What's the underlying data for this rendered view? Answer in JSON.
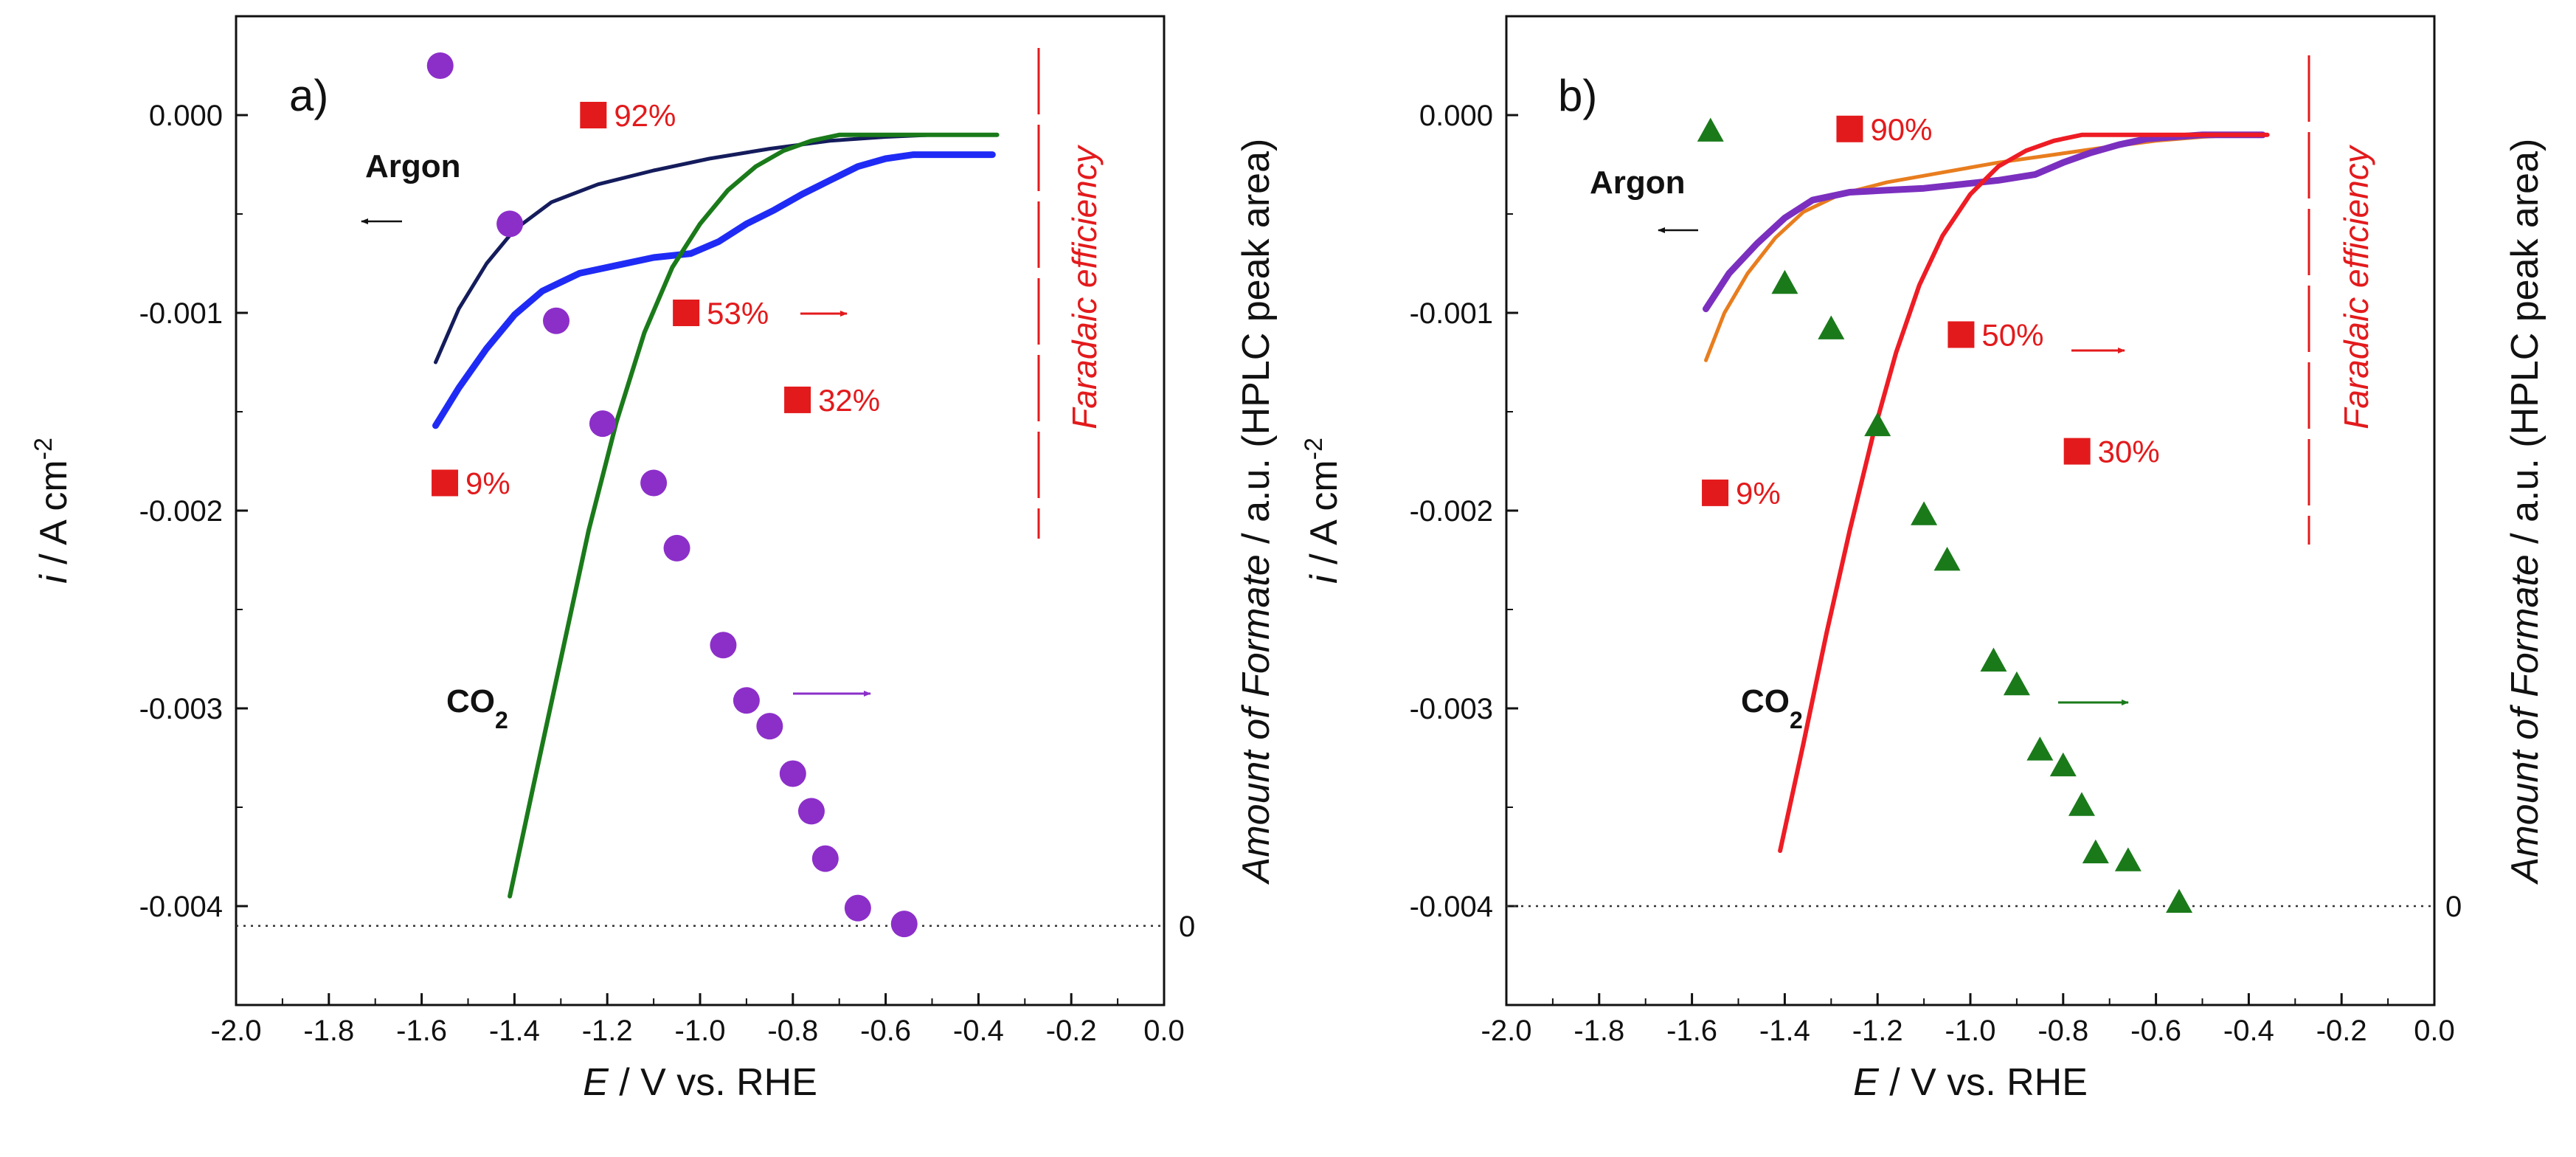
{
  "chart_data": [
    {
      "panel_label": "a)",
      "type": "line",
      "xlabel_italic": "E",
      "xlabel_rest": " / V vs. RHE",
      "ylabel_italic": "i",
      "ylabel_rest": " / A cm",
      "ylabel_sup": "-2",
      "y2label_italic": "Amount of Formate",
      "y2label_rest": " / a.u. (HPLC peak area)",
      "y2_zero_label": "0",
      "fe_title": "Faradaic efficiency",
      "argon_label": "Argon",
      "co2_label": "CO",
      "co2_sub": "2",
      "xlim": [
        -2.0,
        0.0
      ],
      "ylim": [
        -0.0045,
        0.0005
      ],
      "xticks": [
        "-2.0",
        "-1.8",
        "-1.6",
        "-1.4",
        "-1.2",
        "-1.0",
        "-0.8",
        "-0.6",
        "-0.4",
        "-0.2",
        "0.0"
      ],
      "yticks": [
        "0.000",
        "-0.001",
        "-0.002",
        "-0.003",
        "-0.004"
      ],
      "colors": {
        "argon1": "#141c5c",
        "argon2": "#1f2bf5",
        "co2": "#1a7a1a",
        "formate": "#8c2fc9",
        "fe": "#e31a1c"
      },
      "series": [
        {
          "name": "Argon (navy)",
          "x": [
            -1.57,
            -1.52,
            -1.46,
            -1.4,
            -1.32,
            -1.22,
            -1.1,
            -0.98,
            -0.85,
            -0.72,
            -0.6,
            -0.5,
            -0.42,
            -0.37
          ],
          "y": [
            -0.00125,
            -0.00098,
            -0.00075,
            -0.00058,
            -0.00044,
            -0.00035,
            -0.00028,
            -0.00022,
            -0.00017,
            -0.00013,
            -0.00011,
            -0.0001,
            -0.0001,
            -0.0001
          ]
        },
        {
          "name": "Argon (blue)",
          "x": [
            -1.57,
            -1.52,
            -1.46,
            -1.4,
            -1.34,
            -1.26,
            -1.18,
            -1.1,
            -1.02,
            -0.96,
            -0.9,
            -0.84,
            -0.78,
            -0.72,
            -0.66,
            -0.6,
            -0.54,
            -0.48,
            -0.42,
            -0.37
          ],
          "y": [
            -0.00157,
            -0.00138,
            -0.00118,
            -0.00101,
            -0.00089,
            -0.0008,
            -0.00076,
            -0.00072,
            -0.0007,
            -0.00064,
            -0.00055,
            -0.00048,
            -0.0004,
            -0.00033,
            -0.00026,
            -0.00022,
            -0.0002,
            -0.0002,
            -0.0002,
            -0.0002
          ]
        },
        {
          "name": "CO2",
          "x": [
            -1.41,
            -1.36,
            -1.3,
            -1.24,
            -1.18,
            -1.12,
            -1.06,
            -1.0,
            -0.94,
            -0.88,
            -0.82,
            -0.76,
            -0.7,
            -0.64,
            -0.58,
            -0.5,
            -0.4,
            -0.36
          ],
          "y": [
            -0.00395,
            -0.0034,
            -0.00275,
            -0.0021,
            -0.00155,
            -0.0011,
            -0.00077,
            -0.00055,
            -0.00038,
            -0.00026,
            -0.00018,
            -0.00013,
            -0.0001,
            -0.0001,
            -0.0001,
            -0.0001,
            -0.0001,
            -0.0001
          ]
        }
      ],
      "formate_marker": "circle",
      "formate_x": [
        -1.56,
        -1.41,
        -1.31,
        -1.21,
        -1.1,
        -1.05,
        -0.95,
        -0.9,
        -0.85,
        -0.8,
        -0.76,
        -0.73,
        -0.66,
        -0.56
      ],
      "formate_y": [
        0.00025,
        -0.00055,
        -0.00104,
        -0.00156,
        -0.00186,
        -0.00219,
        -0.00268,
        -0.00296,
        -0.00309,
        -0.00333,
        -0.00352,
        -0.00376,
        -0.00401,
        -0.00409
      ],
      "formate_baseline_y": -0.0041,
      "fe_points": [
        {
          "x": -1.55,
          "y": -0.00186,
          "label": "9%"
        },
        {
          "x": -1.23,
          "y": 0.0,
          "label": "92%"
        },
        {
          "x": -1.03,
          "y": -0.001,
          "label": "53%"
        },
        {
          "x": -0.79,
          "y": -0.00144,
          "label": "32%"
        }
      ]
    },
    {
      "panel_label": "b)",
      "type": "line",
      "xlabel_italic": "E",
      "xlabel_rest": " / V vs. RHE",
      "ylabel_italic": "i",
      "ylabel_rest": " / A cm",
      "ylabel_sup": "-2",
      "y2label_italic": "Amount of Formate",
      "y2label_rest": " / a.u. (HPLC peak area)",
      "y2_zero_label": "0",
      "fe_title": "Faradaic efficiency",
      "argon_label": "Argon",
      "co2_label": "CO",
      "co2_sub": "2",
      "xlim": [
        -2.0,
        0.0
      ],
      "ylim": [
        -0.0045,
        0.0005
      ],
      "xticks": [
        "-2.0",
        "-1.8",
        "-1.6",
        "-1.4",
        "-1.2",
        "-1.0",
        "-0.8",
        "-0.6",
        "-0.4",
        "-0.2",
        "0.0"
      ],
      "yticks": [
        "0.000",
        "-0.001",
        "-0.002",
        "-0.003",
        "-0.004"
      ],
      "colors": {
        "argon1": "#e87d1e",
        "argon2": "#7b2fbf",
        "co2": "#ee1c24",
        "formate": "#1a7a1a",
        "fe": "#e31a1c"
      },
      "series": [
        {
          "name": "Argon (orange)",
          "x": [
            -1.57,
            -1.53,
            -1.48,
            -1.42,
            -1.36,
            -1.28,
            -1.18,
            -1.06,
            -0.94,
            -0.82,
            -0.7,
            -0.6,
            -0.5,
            -0.42,
            -0.37
          ],
          "y": [
            -0.00124,
            -0.001,
            -0.0008,
            -0.00062,
            -0.00049,
            -0.0004,
            -0.00034,
            -0.00029,
            -0.00024,
            -0.0002,
            -0.00016,
            -0.00013,
            -0.00011,
            -0.0001,
            -0.0001
          ]
        },
        {
          "name": "Argon (purple)",
          "x": [
            -1.57,
            -1.52,
            -1.46,
            -1.4,
            -1.34,
            -1.26,
            -1.18,
            -1.1,
            -1.02,
            -0.94,
            -0.86,
            -0.8,
            -0.74,
            -0.68,
            -0.62,
            -0.56,
            -0.5,
            -0.44,
            -0.37
          ],
          "y": [
            -0.00098,
            -0.0008,
            -0.00065,
            -0.00052,
            -0.00043,
            -0.00039,
            -0.00038,
            -0.00037,
            -0.00035,
            -0.00033,
            -0.0003,
            -0.00024,
            -0.00019,
            -0.00015,
            -0.00012,
            -0.00011,
            -0.0001,
            -0.0001,
            -0.0001
          ]
        },
        {
          "name": "CO2",
          "x": [
            -1.41,
            -1.36,
            -1.31,
            -1.26,
            -1.21,
            -1.16,
            -1.11,
            -1.06,
            -1.0,
            -0.94,
            -0.88,
            -0.82,
            -0.76,
            -0.7,
            -0.64,
            -0.58,
            -0.52,
            -0.4,
            -0.36
          ],
          "y": [
            -0.00372,
            -0.00318,
            -0.00262,
            -0.0021,
            -0.00162,
            -0.0012,
            -0.00086,
            -0.00061,
            -0.0004,
            -0.00026,
            -0.00018,
            -0.00013,
            -0.0001,
            -0.0001,
            -0.0001,
            -0.0001,
            -0.0001,
            -0.0001,
            -0.0001
          ]
        }
      ],
      "formate_marker": "triangle",
      "formate_x": [
        -1.56,
        -1.4,
        -1.3,
        -1.2,
        -1.1,
        -1.05,
        -0.95,
        -0.9,
        -0.85,
        -0.8,
        -0.76,
        -0.73,
        -0.66,
        -0.55
      ],
      "formate_y": [
        -8e-05,
        -0.00085,
        -0.00108,
        -0.00157,
        -0.00202,
        -0.00225,
        -0.00276,
        -0.00288,
        -0.00321,
        -0.00329,
        -0.00349,
        -0.00373,
        -0.00377,
        -0.00398
      ],
      "formate_baseline_y": -0.004,
      "fe_points": [
        {
          "x": -1.55,
          "y": -0.00191,
          "label": "9%"
        },
        {
          "x": -1.26,
          "y": -7e-05,
          "label": "90%"
        },
        {
          "x": -1.02,
          "y": -0.00111,
          "label": "50%"
        },
        {
          "x": -0.77,
          "y": -0.0017,
          "label": "30%"
        }
      ]
    }
  ]
}
